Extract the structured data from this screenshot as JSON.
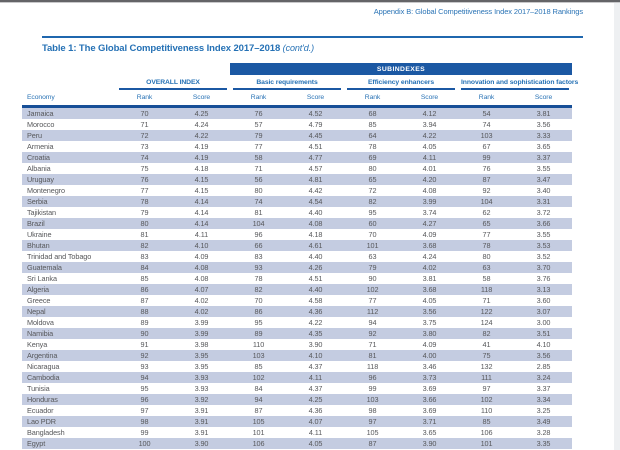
{
  "page": {
    "appendix_note": "Appendix B: Global Competitiveness Index 2017–2018 Rankings"
  },
  "table": {
    "title": "Table 1: The Global Competitiveness Index 2017–2018",
    "title_contd": "(cont'd.)",
    "subindexes_label": "SUBINDEXES",
    "groups": {
      "overall": "OVERALL INDEX",
      "basic": "Basic requirements",
      "efficiency": "Efficiency enhancers",
      "innovation": "Innovation and sophistication factors"
    },
    "column_headers": {
      "economy": "Economy",
      "rank": "Rank",
      "score": "Score"
    },
    "colors": {
      "dark_blue": "#1b58a3",
      "text_blue": "#2571b5",
      "stripe": "#c4cce1",
      "body_text": "#57585b"
    },
    "rows": [
      {
        "economy": "Jamaica",
        "values": [
          "70",
          "4.25",
          "76",
          "4.52",
          "68",
          "4.12",
          "54",
          "3.81"
        ]
      },
      {
        "economy": "Morocco",
        "values": [
          "71",
          "4.24",
          "57",
          "4.79",
          "85",
          "3.94",
          "74",
          "3.56"
        ]
      },
      {
        "economy": "Peru",
        "values": [
          "72",
          "4.22",
          "79",
          "4.45",
          "64",
          "4.22",
          "103",
          "3.33"
        ]
      },
      {
        "economy": "Armenia",
        "values": [
          "73",
          "4.19",
          "77",
          "4.51",
          "78",
          "4.05",
          "67",
          "3.65"
        ]
      },
      {
        "economy": "Croatia",
        "values": [
          "74",
          "4.19",
          "58",
          "4.77",
          "69",
          "4.11",
          "99",
          "3.37"
        ]
      },
      {
        "economy": "Albania",
        "values": [
          "75",
          "4.18",
          "71",
          "4.57",
          "80",
          "4.01",
          "76",
          "3.55"
        ]
      },
      {
        "economy": "Uruguay",
        "values": [
          "76",
          "4.15",
          "56",
          "4.81",
          "65",
          "4.20",
          "87",
          "3.47"
        ]
      },
      {
        "economy": "Montenegro",
        "values": [
          "77",
          "4.15",
          "80",
          "4.42",
          "72",
          "4.08",
          "92",
          "3.40"
        ]
      },
      {
        "economy": "Serbia",
        "values": [
          "78",
          "4.14",
          "74",
          "4.54",
          "82",
          "3.99",
          "104",
          "3.31"
        ]
      },
      {
        "economy": "Tajikistan",
        "values": [
          "79",
          "4.14",
          "81",
          "4.40",
          "95",
          "3.74",
          "62",
          "3.72"
        ]
      },
      {
        "economy": "Brazil",
        "values": [
          "80",
          "4.14",
          "104",
          "4.08",
          "60",
          "4.27",
          "65",
          "3.66"
        ]
      },
      {
        "economy": "Ukraine",
        "values": [
          "81",
          "4.11",
          "96",
          "4.18",
          "70",
          "4.09",
          "77",
          "3.55"
        ]
      },
      {
        "economy": "Bhutan",
        "values": [
          "82",
          "4.10",
          "66",
          "4.61",
          "101",
          "3.68",
          "78",
          "3.53"
        ]
      },
      {
        "economy": "Trinidad and Tobago",
        "values": [
          "83",
          "4.09",
          "83",
          "4.40",
          "63",
          "4.24",
          "80",
          "3.52"
        ]
      },
      {
        "economy": "Guatemala",
        "values": [
          "84",
          "4.08",
          "93",
          "4.26",
          "79",
          "4.02",
          "63",
          "3.70"
        ]
      },
      {
        "economy": "Sri Lanka",
        "values": [
          "85",
          "4.08",
          "78",
          "4.51",
          "90",
          "3.81",
          "58",
          "3.76"
        ]
      },
      {
        "economy": "Algeria",
        "values": [
          "86",
          "4.07",
          "82",
          "4.40",
          "102",
          "3.68",
          "118",
          "3.13"
        ]
      },
      {
        "economy": "Greece",
        "values": [
          "87",
          "4.02",
          "70",
          "4.58",
          "77",
          "4.05",
          "71",
          "3.60"
        ]
      },
      {
        "economy": "Nepal",
        "values": [
          "88",
          "4.02",
          "86",
          "4.36",
          "112",
          "3.56",
          "122",
          "3.07"
        ]
      },
      {
        "economy": "Moldova",
        "values": [
          "89",
          "3.99",
          "95",
          "4.22",
          "94",
          "3.75",
          "124",
          "3.00"
        ]
      },
      {
        "economy": "Namibia",
        "values": [
          "90",
          "3.99",
          "89",
          "4.35",
          "92",
          "3.80",
          "82",
          "3.51"
        ]
      },
      {
        "economy": "Kenya",
        "values": [
          "91",
          "3.98",
          "110",
          "3.90",
          "71",
          "4.09",
          "41",
          "4.10"
        ]
      },
      {
        "economy": "Argentina",
        "values": [
          "92",
          "3.95",
          "103",
          "4.10",
          "81",
          "4.00",
          "75",
          "3.56"
        ]
      },
      {
        "economy": "Nicaragua",
        "values": [
          "93",
          "3.95",
          "85",
          "4.37",
          "118",
          "3.46",
          "132",
          "2.85"
        ]
      },
      {
        "economy": "Cambodia",
        "values": [
          "94",
          "3.93",
          "102",
          "4.11",
          "96",
          "3.73",
          "111",
          "3.24"
        ]
      },
      {
        "economy": "Tunisia",
        "values": [
          "95",
          "3.93",
          "84",
          "4.37",
          "99",
          "3.69",
          "97",
          "3.37"
        ]
      },
      {
        "economy": "Honduras",
        "values": [
          "96",
          "3.92",
          "94",
          "4.25",
          "103",
          "3.66",
          "102",
          "3.34"
        ]
      },
      {
        "economy": "Ecuador",
        "values": [
          "97",
          "3.91",
          "87",
          "4.36",
          "98",
          "3.69",
          "110",
          "3.25"
        ]
      },
      {
        "economy": "Lao PDR",
        "values": [
          "98",
          "3.91",
          "105",
          "4.07",
          "97",
          "3.71",
          "85",
          "3.49"
        ]
      },
      {
        "economy": "Bangladesh",
        "values": [
          "99",
          "3.91",
          "101",
          "4.11",
          "105",
          "3.65",
          "106",
          "3.28"
        ]
      },
      {
        "economy": "Egypt",
        "values": [
          "100",
          "3.90",
          "106",
          "4.05",
          "87",
          "3.90",
          "101",
          "3.35"
        ]
      }
    ]
  }
}
